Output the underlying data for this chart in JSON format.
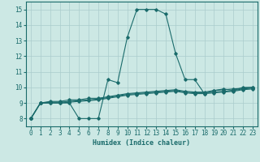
{
  "xlabel": "Humidex (Indice chaleur)",
  "ylabel": "",
  "xlim": [
    -0.5,
    23.5
  ],
  "ylim": [
    7.5,
    15.5
  ],
  "xticks": [
    0,
    1,
    2,
    3,
    4,
    5,
    6,
    7,
    8,
    9,
    10,
    11,
    12,
    13,
    14,
    15,
    16,
    17,
    18,
    19,
    20,
    21,
    22,
    23
  ],
  "yticks": [
    8,
    9,
    10,
    11,
    12,
    13,
    14,
    15
  ],
  "background_color": "#cce8e4",
  "grid_color": "#aacccc",
  "line_color": "#1a6b6b",
  "series": [
    [
      8.0,
      9.0,
      9.0,
      9.0,
      9.0,
      8.0,
      8.0,
      8.0,
      10.5,
      10.3,
      13.2,
      15.0,
      15.0,
      15.0,
      14.7,
      12.2,
      10.5,
      10.5,
      9.6,
      9.8,
      9.9,
      9.8,
      10.0,
      10.0
    ],
    [
      8.0,
      9.0,
      9.1,
      9.1,
      9.2,
      9.2,
      9.3,
      9.3,
      9.4,
      9.5,
      9.6,
      9.65,
      9.7,
      9.75,
      9.8,
      9.85,
      9.75,
      9.7,
      9.7,
      9.8,
      9.85,
      9.9,
      9.95,
      10.0
    ],
    [
      8.0,
      9.0,
      9.05,
      9.05,
      9.1,
      9.15,
      9.2,
      9.25,
      9.35,
      9.45,
      9.55,
      9.6,
      9.65,
      9.7,
      9.75,
      9.8,
      9.7,
      9.65,
      9.65,
      9.7,
      9.75,
      9.8,
      9.9,
      9.95
    ],
    [
      8.0,
      9.0,
      9.0,
      9.0,
      9.05,
      9.1,
      9.15,
      9.2,
      9.3,
      9.4,
      9.5,
      9.55,
      9.6,
      9.65,
      9.7,
      9.75,
      9.65,
      9.6,
      9.6,
      9.65,
      9.7,
      9.75,
      9.85,
      9.9
    ]
  ]
}
